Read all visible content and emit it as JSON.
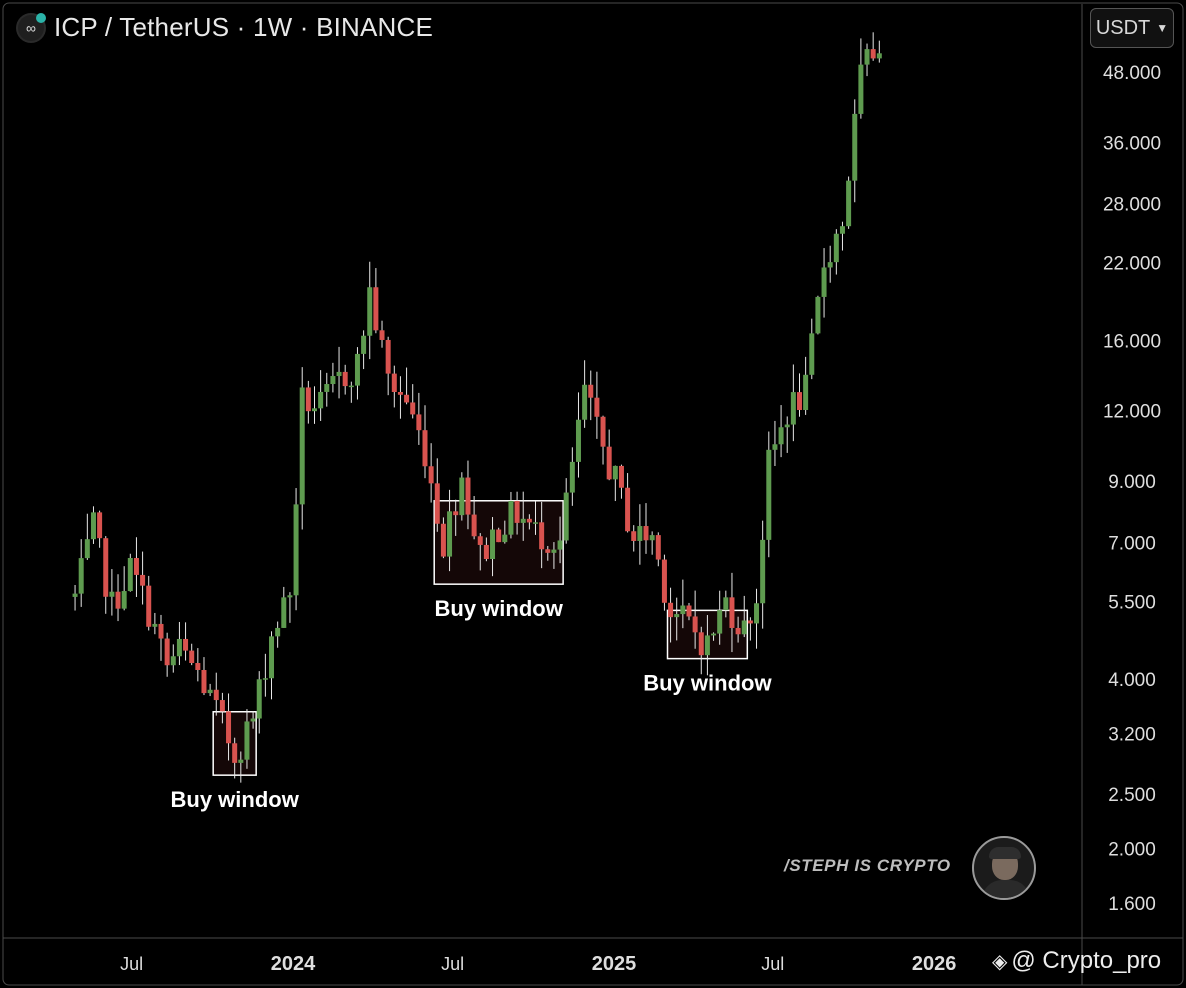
{
  "header": {
    "title": "ICP / TetherUS · 1W · BINANCE",
    "logo_icon": "infinity-logo-icon"
  },
  "currency_selector": {
    "label": "USDT",
    "icon": "chevron-down-icon"
  },
  "watermark": {
    "text": "/STEPH IS CRYPTO"
  },
  "credit": {
    "text": "@ Crypto_pro",
    "icon": "binance-diamond-icon"
  },
  "colors": {
    "background": "#000000",
    "up_candle": "#5e9b4f",
    "down_candle": "#d9534f",
    "wick": "#e8e8e8",
    "box_border": "#ffffff",
    "box_fill": "#140707",
    "axis_text": "#dedede"
  },
  "chart_data": {
    "type": "candlestick",
    "title": "ICP / TetherUS · 1W · BINANCE",
    "y_scale": "log",
    "y_ticks": [
      "48.000",
      "36.000",
      "28.000",
      "22.000",
      "16.000",
      "12.000",
      "9.000",
      "7.000",
      "5.500",
      "4.000",
      "3.200",
      "2.500",
      "2.000",
      "1.600"
    ],
    "x_ticks": [
      {
        "label": "Jul",
        "bold": false
      },
      {
        "label": "2024",
        "bold": true
      },
      {
        "label": "Jul",
        "bold": false
      },
      {
        "label": "2025",
        "bold": true
      },
      {
        "label": "Jul",
        "bold": false
      },
      {
        "label": "2026",
        "bold": true
      }
    ],
    "x_tick_dates": [
      "2023-07-01",
      "2024-01-01",
      "2024-07-01",
      "2025-01-01",
      "2025-07-01",
      "2026-01-01"
    ],
    "series_start_date": "2023-04-24",
    "interval": "1W",
    "close_path": [
      [
        "2023-04-24",
        5.6
      ],
      [
        "2023-05-15",
        7.4
      ],
      [
        "2023-06-05",
        5.4
      ],
      [
        "2023-06-26",
        6.3
      ],
      [
        "2023-07-17",
        5.3
      ],
      [
        "2023-08-07",
        4.2
      ],
      [
        "2023-08-21",
        4.5
      ],
      [
        "2023-09-11",
        4.1
      ],
      [
        "2023-10-02",
        3.5
      ],
      [
        "2023-10-23",
        2.95
      ],
      [
        "2023-11-13",
        3.4
      ],
      [
        "2023-12-04",
        4.8
      ],
      [
        "2023-12-25",
        5.7
      ],
      [
        "2024-01-08",
        12.5
      ],
      [
        "2024-01-29",
        12.2
      ],
      [
        "2024-02-19",
        13.6
      ],
      [
        "2024-03-11",
        14.5
      ],
      [
        "2024-03-25",
        19.5
      ],
      [
        "2024-04-15",
        13.6
      ],
      [
        "2024-05-06",
        12.5
      ],
      [
        "2024-05-27",
        10.2
      ],
      [
        "2024-06-17",
        7.0
      ],
      [
        "2024-07-08",
        9.2
      ],
      [
        "2024-07-29",
        6.6
      ],
      [
        "2024-08-19",
        7.5
      ],
      [
        "2024-09-09",
        7.9
      ],
      [
        "2024-09-30",
        7.3
      ],
      [
        "2024-10-28",
        7.0
      ],
      [
        "2024-11-25",
        13.0
      ],
      [
        "2024-12-09",
        11.0
      ],
      [
        "2024-12-30",
        9.0
      ],
      [
        "2025-01-20",
        7.2
      ],
      [
        "2025-02-10",
        7.2
      ],
      [
        "2025-03-03",
        5.3
      ],
      [
        "2025-03-24",
        5.0
      ],
      [
        "2025-04-14",
        4.6
      ],
      [
        "2025-05-05",
        5.5
      ],
      [
        "2025-05-26",
        4.9
      ],
      [
        "2025-06-09",
        5.6
      ],
      [
        "2025-06-23",
        9.6
      ],
      [
        "2025-07-14",
        12.0
      ],
      [
        "2025-08-04",
        13.0
      ],
      [
        "2025-08-25",
        22.0
      ],
      [
        "2025-09-15",
        26.0
      ],
      [
        "2025-10-06",
        47.0
      ],
      [
        "2025-10-27",
        55.0
      ]
    ],
    "annotations": [
      {
        "label": "Buy window",
        "from": "2023-10-02",
        "to": "2023-11-20",
        "low": 2.7,
        "high": 3.5
      },
      {
        "label": "Buy window",
        "from": "2024-06-10",
        "to": "2024-11-04",
        "low": 5.9,
        "high": 8.3
      },
      {
        "label": "Buy window",
        "from": "2025-03-03",
        "to": "2025-06-02",
        "low": 4.35,
        "high": 5.3
      }
    ]
  }
}
